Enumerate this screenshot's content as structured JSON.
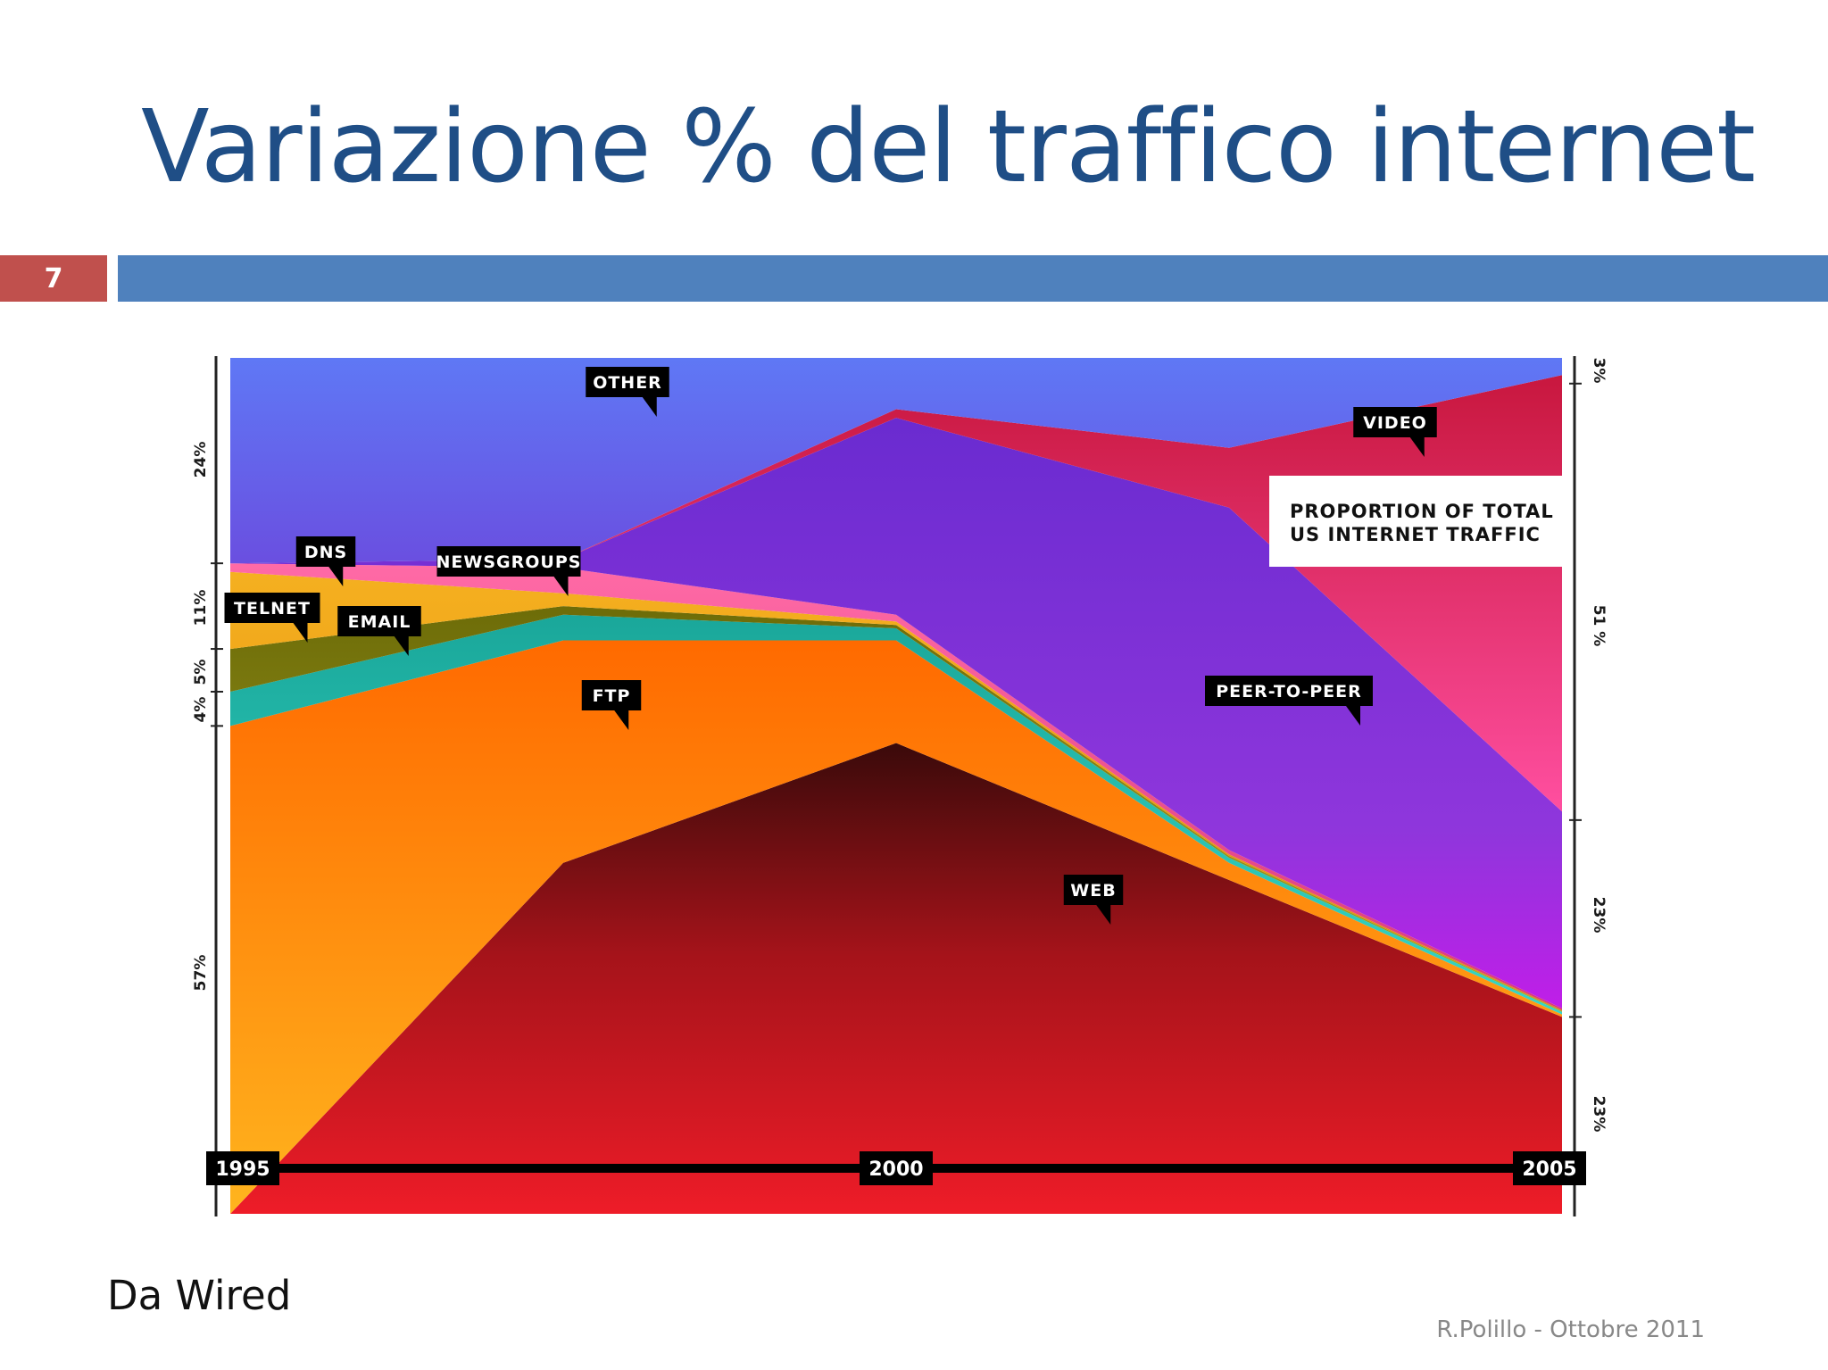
{
  "slide": {
    "title": "Variazione % del traffico internet",
    "page_number": "7",
    "source": "Da Wired",
    "footer": "R.Polillo - Ottobre 2011"
  },
  "colors": {
    "title": "#1f4e86",
    "bar": "#4f81bd",
    "page_box": "#c0504d"
  },
  "chart_data": {
    "type": "area",
    "stacked": true,
    "normalized": true,
    "note_box": [
      "PROPORTION OF TOTAL",
      "US INTERNET TRAFFIC"
    ],
    "x": [
      1995,
      1997.5,
      2000,
      2002.5,
      2005
    ],
    "x_tick_labels": [
      "1995",
      "2000",
      "2005"
    ],
    "ylim": [
      0,
      100
    ],
    "left_axis_labels": [
      "57%",
      "4%",
      "5%",
      "11%",
      "24%"
    ],
    "right_axis_labels": [
      "23%",
      "23%",
      "51 %",
      "3%"
    ],
    "series": [
      {
        "name": "WEB",
        "values": [
          0,
          41,
          55,
          39,
          23
        ],
        "color": "#c8151c"
      },
      {
        "name": "FTP",
        "values": [
          57,
          26,
          12,
          2,
          0.3
        ],
        "color": "#ff7d10"
      },
      {
        "name": "EMAIL",
        "values": [
          4,
          3,
          1.4,
          0.6,
          0.3
        ],
        "color": "#2bbfb0"
      },
      {
        "name": "TELNET",
        "values": [
          5,
          1,
          0.4,
          0.2,
          0.1
        ],
        "color": "#8c8a14"
      },
      {
        "name": "DNS",
        "values": [
          9,
          1.5,
          0.4,
          0.2,
          0.1
        ],
        "color": "#e69a10"
      },
      {
        "name": "NEWSGROUPS",
        "values": [
          1,
          3,
          0.8,
          0.5,
          0.2
        ],
        "color": "#ee4a8c"
      },
      {
        "name": "PEER-TO-PEER",
        "values": [
          0,
          1,
          23,
          40,
          23
        ],
        "color": "#8a32d6"
      },
      {
        "name": "VIDEO",
        "values": [
          0,
          0,
          1,
          7,
          51
        ],
        "color": "#d42a5a"
      },
      {
        "name": "OTHER",
        "values": [
          24,
          23,
          6,
          10,
          2
        ],
        "color": "#5a6df0"
      }
    ]
  }
}
